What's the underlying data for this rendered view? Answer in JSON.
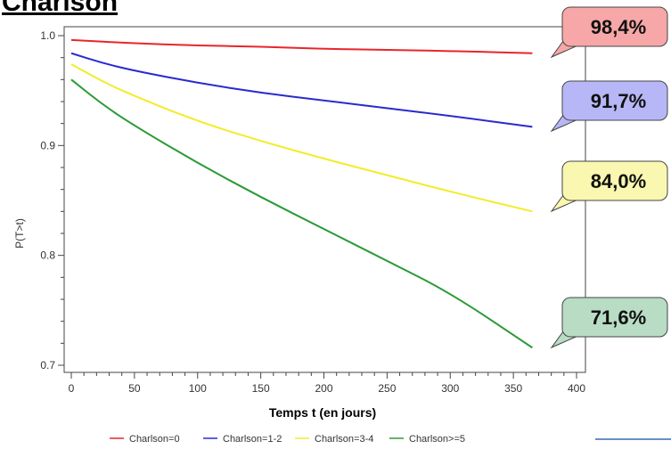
{
  "title": "Charlson",
  "colors": {
    "charlson0": "#e8262b",
    "charlson12": "#2a2ad0",
    "charlson34": "#f2ec2a",
    "charlson5": "#2a9a36",
    "callout_red_fill": "#f7a7a7",
    "callout_blue_fill": "#b7b7f7",
    "callout_yellow_fill": "#f9f7b0",
    "callout_green_fill": "#b8dcc4"
  },
  "chart_data": {
    "type": "line",
    "xlabel": "Temps t (en jours)",
    "ylabel": "P(T>t)",
    "xlim": [
      0,
      400
    ],
    "ylim": [
      0.7,
      1.0
    ],
    "xticks": [
      0,
      50,
      100,
      150,
      200,
      250,
      300,
      350,
      400
    ],
    "yticks": [
      0.7,
      0.8,
      0.9,
      1.0
    ],
    "ytick_labels": [
      "0.7",
      "0.8",
      "0.9",
      "1.0"
    ],
    "grid": false,
    "legend_position": "bottom",
    "series": [
      {
        "name": "Charlson=0",
        "color_key": "charlson0",
        "x": [
          0,
          50,
          100,
          150,
          200,
          250,
          300,
          365
        ],
        "y": [
          0.996,
          0.993,
          0.991,
          0.99,
          0.988,
          0.987,
          0.986,
          0.984
        ]
      },
      {
        "name": "Charlson=1-2",
        "color_key": "charlson12",
        "x": [
          0,
          25,
          50,
          100,
          150,
          200,
          250,
          300,
          365
        ],
        "y": [
          0.984,
          0.975,
          0.968,
          0.957,
          0.948,
          0.941,
          0.934,
          0.927,
          0.917
        ]
      },
      {
        "name": "Charlson=3-4",
        "color_key": "charlson34",
        "x": [
          0,
          25,
          50,
          100,
          150,
          200,
          250,
          300,
          365
        ],
        "y": [
          0.974,
          0.958,
          0.945,
          0.922,
          0.904,
          0.888,
          0.873,
          0.858,
          0.84
        ]
      },
      {
        "name": "Charlson>=5",
        "color_key": "charlson5",
        "x": [
          0,
          25,
          50,
          100,
          150,
          200,
          250,
          300,
          365
        ],
        "y": [
          0.96,
          0.937,
          0.918,
          0.884,
          0.853,
          0.824,
          0.795,
          0.766,
          0.716
        ]
      }
    ],
    "annotations": [
      {
        "text": "98,4%",
        "fill_key": "callout_red_fill"
      },
      {
        "text": "91,7%",
        "fill_key": "callout_blue_fill"
      },
      {
        "text": "84,0%",
        "fill_key": "callout_yellow_fill"
      },
      {
        "text": "71,6%",
        "fill_key": "callout_green_fill"
      }
    ]
  }
}
